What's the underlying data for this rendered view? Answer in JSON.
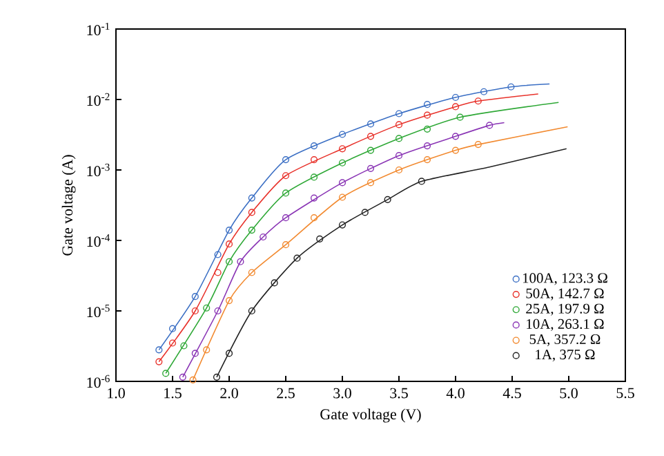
{
  "chart_data": {
    "type": "scatter",
    "xlabel": "Gate voltage (V)",
    "ylabel": "Gate voltage (A)",
    "log": "y",
    "marker": "circle",
    "legend": "bottom right",
    "xlim": [
      1.0,
      5.5
    ],
    "ylim": [
      1e-06,
      0.1
    ],
    "xticks": [
      {
        "value": 1.0,
        "label": "1.0"
      },
      1.5,
      {
        "value": 2.0,
        "label": "2.0"
      },
      2.5,
      {
        "value": 3.0,
        "label": "3.0"
      },
      3.5,
      {
        "value": 4.0,
        "label": "4.0"
      },
      4.5,
      {
        "value": 5.0,
        "label": "5.0"
      },
      5.5
    ],
    "yticks": [
      {
        "value": 1e-06,
        "label": "10$^{-6}$"
      },
      {
        "value": 1e-05,
        "label": "10$^{-5}$"
      },
      {
        "value": 0.0001,
        "label": "10$^{-4}$"
      },
      {
        "value": 0.001,
        "label": "10$^{-3}$"
      },
      {
        "value": 0.01,
        "label": "10$^{-2}$"
      },
      {
        "value": 0.1,
        "label": "10$^{-1}$"
      }
    ],
    "series": [
      {
        "name": "100A, 123.3 Ω",
        "color": "#3b6fc4",
        "x": [
          1.38,
          1.5,
          1.7,
          1.9,
          2.0,
          2.2,
          2.5,
          2.75,
          3.0,
          3.25,
          3.5,
          3.75,
          4.0,
          4.25,
          4.49
        ],
        "values": [
          2.8e-06,
          5.6e-06,
          1.6e-05,
          6.3e-05,
          0.00014,
          0.0004,
          0.0014,
          0.0022,
          0.0032,
          0.0045,
          0.0063,
          0.0085,
          0.0107,
          0.0129,
          0.0151
        ]
      },
      {
        "name": "50A, 142.7 Ω",
        "color": "#e8312a",
        "x": [
          1.38,
          1.5,
          1.7,
          1.9,
          2.0,
          2.2,
          2.5,
          2.75,
          3.0,
          3.25,
          3.5,
          3.75,
          4.0,
          4.2
        ],
        "values": [
          1.9e-06,
          3.5e-06,
          1e-05,
          3.5e-05,
          8.9e-05,
          0.00025,
          0.00083,
          0.0014,
          0.002,
          0.003,
          0.0044,
          0.006,
          0.0079,
          0.0095
        ]
      },
      {
        "name": "25A, 197.9 Ω",
        "color": "#2ea836",
        "x": [
          1.44,
          1.6,
          1.8,
          2.0,
          2.2,
          2.5,
          2.75,
          3.0,
          3.25,
          3.5,
          3.75,
          4.04
        ],
        "values": [
          1.3e-06,
          3.2e-06,
          1.1e-05,
          5e-05,
          0.00014,
          0.00047,
          0.00079,
          0.00126,
          0.0019,
          0.0028,
          0.0038,
          0.0056
        ]
      },
      {
        "name": "10A, 263.1 Ω",
        "color": "#8a35b5",
        "x": [
          1.59,
          1.7,
          1.9,
          2.1,
          2.3,
          2.5,
          2.75,
          3.0,
          3.25,
          3.5,
          3.75,
          4.0,
          4.3
        ],
        "values": [
          1.15e-06,
          2.5e-06,
          1e-05,
          5e-05,
          0.000112,
          0.00021,
          0.0004,
          0.00066,
          0.00105,
          0.0016,
          0.0022,
          0.003,
          0.0043
        ]
      },
      {
        "name": "5A, 357.2 Ω",
        "color": "#f28a30",
        "x": [
          1.68,
          1.8,
          2.0,
          2.2,
          2.5,
          2.75,
          3.0,
          3.25,
          3.5,
          3.75,
          4.0,
          4.2
        ],
        "values": [
          1.05e-06,
          2.8e-06,
          1.4e-05,
          3.5e-05,
          8.7e-05,
          0.00021,
          0.00041,
          0.00066,
          0.001,
          0.0014,
          0.0019,
          0.0023
        ]
      },
      {
        "name": "1A, 375 Ω",
        "color": "#222222",
        "x": [
          1.89,
          2.0,
          2.2,
          2.4,
          2.6,
          2.8,
          3.0,
          3.2,
          3.4,
          3.7
        ],
        "values": [
          1.15e-06,
          2.5e-06,
          1e-05,
          2.5e-05,
          5.6e-05,
          0.000105,
          0.000166,
          0.00025,
          0.00038,
          0.00069
        ]
      },
      {
        "type": "line",
        "marker": "none",
        "color": "#3b6fc4",
        "x": [
          1.38,
          1.7,
          2.0,
          2.2,
          2.5,
          3.0,
          3.5,
          4.0,
          4.49,
          4.83
        ],
        "values": [
          2.8e-06,
          1.6e-05,
          0.00014,
          0.0004,
          0.0014,
          0.0032,
          0.0063,
          0.0107,
          0.0151,
          0.0166
        ]
      },
      {
        "type": "line",
        "marker": "none",
        "color": "#e8312a",
        "x": [
          1.38,
          1.7,
          2.0,
          2.2,
          2.5,
          3.0,
          3.5,
          4.0,
          4.2,
          4.73
        ],
        "values": [
          1.9e-06,
          1e-05,
          8.9e-05,
          0.00025,
          0.00083,
          0.002,
          0.0044,
          0.0079,
          0.0095,
          0.012
        ]
      },
      {
        "type": "line",
        "marker": "none",
        "color": "#2ea836",
        "x": [
          1.44,
          1.8,
          2.0,
          2.2,
          2.5,
          3.0,
          3.5,
          4.04,
          4.91
        ],
        "values": [
          1.3e-06,
          1.1e-05,
          5e-05,
          0.00014,
          0.00047,
          0.00126,
          0.0028,
          0.0056,
          0.0091
        ]
      },
      {
        "type": "line",
        "marker": "none",
        "color": "#8a35b5",
        "x": [
          1.59,
          1.9,
          2.1,
          2.3,
          2.5,
          3.0,
          3.5,
          4.0,
          4.3,
          4.43
        ],
        "values": [
          1.15e-06,
          1e-05,
          5e-05,
          0.000112,
          0.00021,
          0.00066,
          0.0016,
          0.003,
          0.0043,
          0.0047
        ]
      },
      {
        "type": "line",
        "marker": "none",
        "color": "#f28a30",
        "x": [
          1.68,
          2.0,
          2.2,
          2.5,
          3.0,
          3.5,
          4.0,
          4.2,
          4.99
        ],
        "values": [
          1.05e-06,
          1.4e-05,
          3.5e-05,
          8.7e-05,
          0.00041,
          0.001,
          0.0019,
          0.0023,
          0.0041
        ]
      },
      {
        "type": "line",
        "marker": "none",
        "color": "#222222",
        "x": [
          1.89,
          2.2,
          2.6,
          3.0,
          3.4,
          3.7,
          4.3,
          4.98
        ],
        "values": [
          1.15e-06,
          1e-05,
          5.6e-05,
          0.000166,
          0.00038,
          0.00069,
          0.0011,
          0.002
        ]
      }
    ]
  }
}
